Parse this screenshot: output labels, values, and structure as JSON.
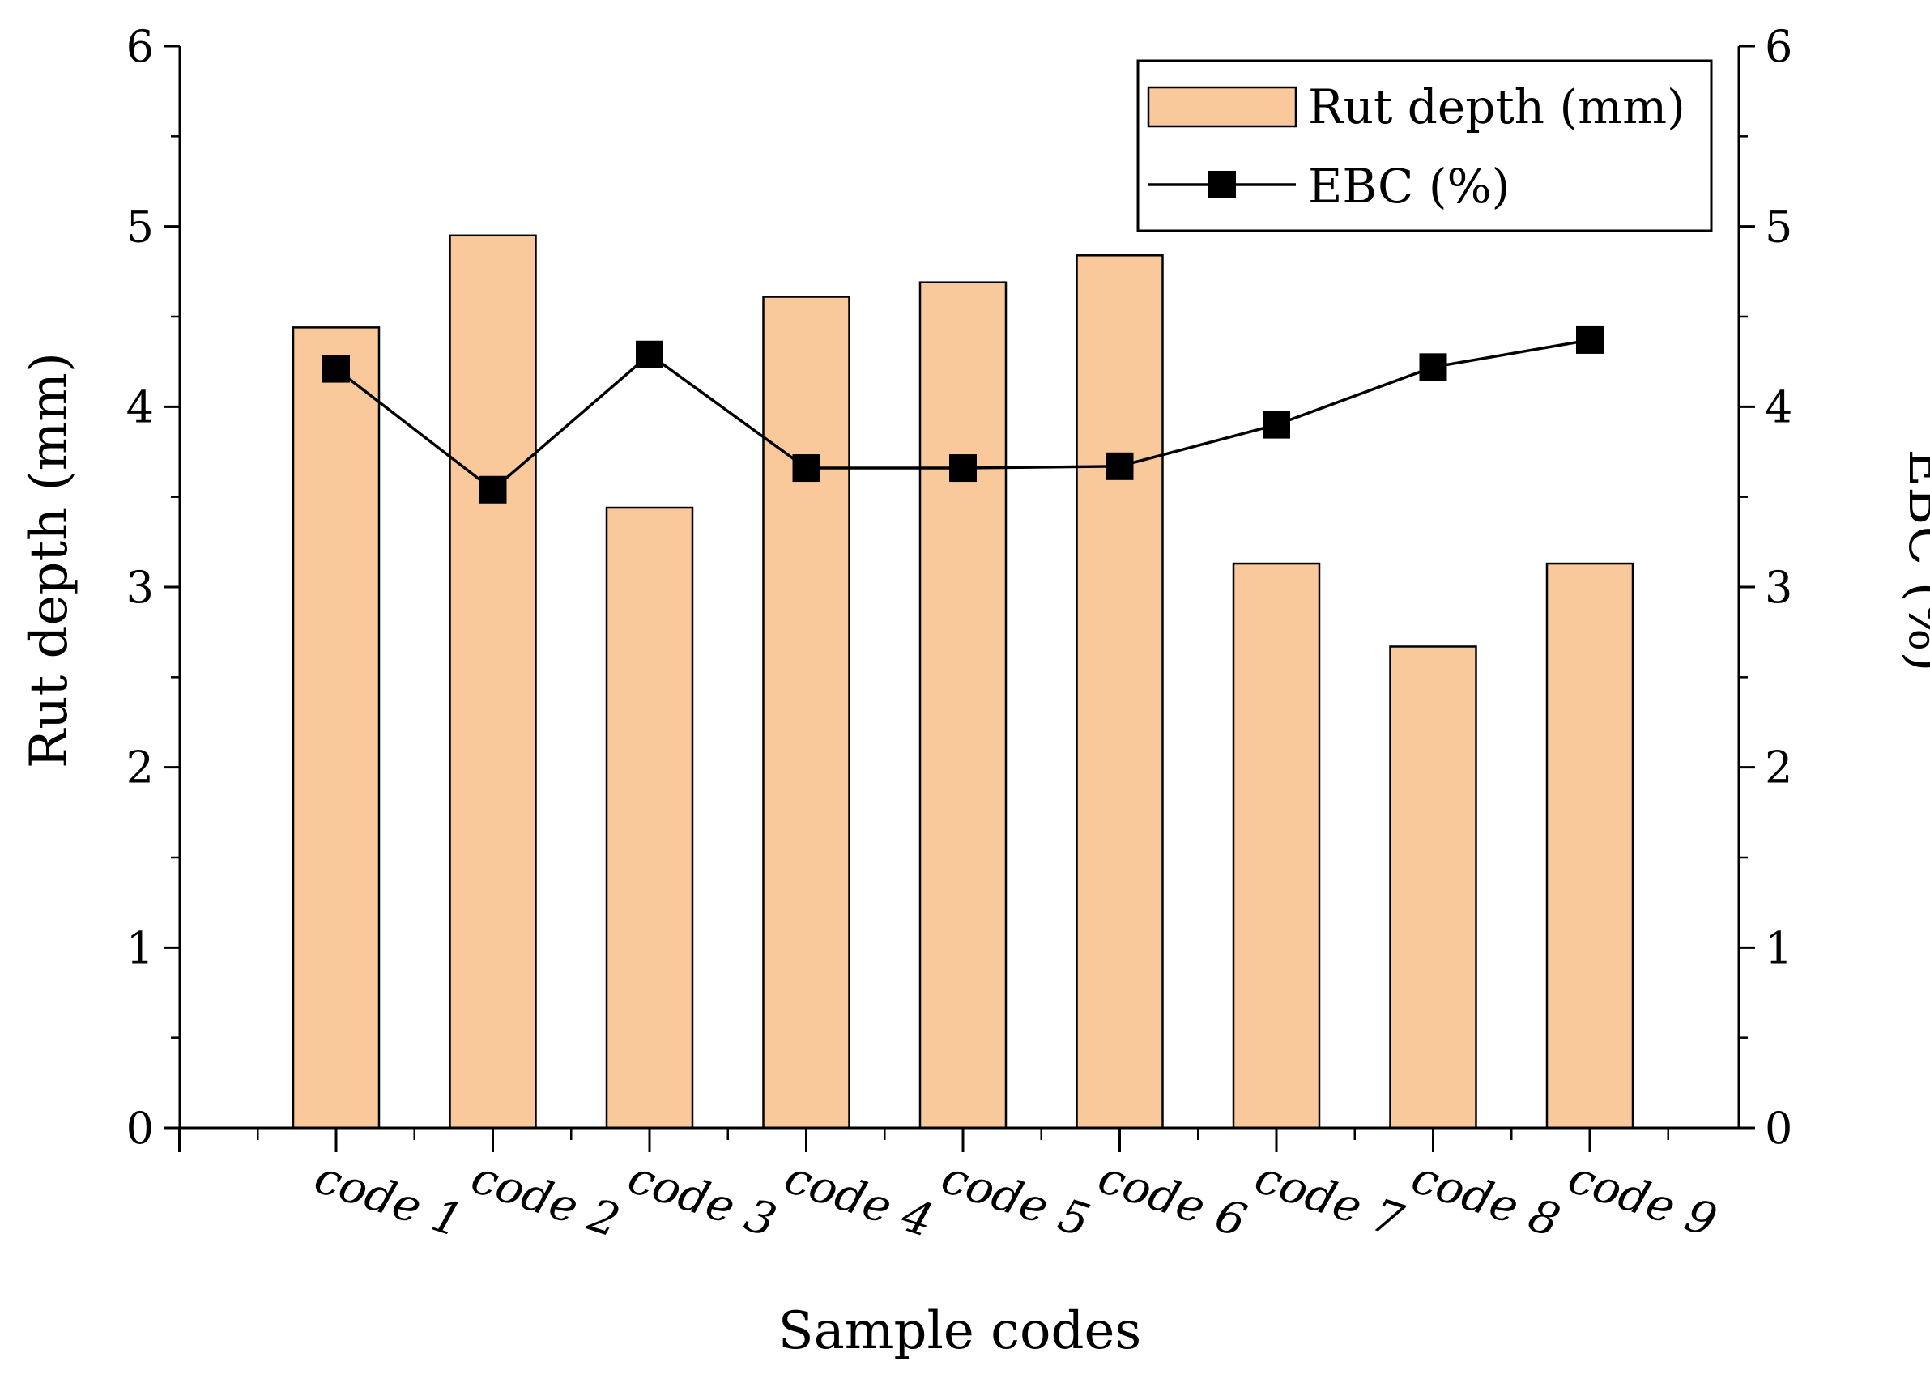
{
  "chart_data": {
    "type": "bar",
    "categories": [
      "code 1",
      "code 2",
      "code 3",
      "code 4",
      "code 5",
      "code 6",
      "code 7",
      "code 8",
      "code 9"
    ],
    "series": [
      {
        "name": "Rut depth (mm)",
        "type": "bar",
        "axis": "left",
        "color": "#f9c89b",
        "values": [
          4.44,
          4.95,
          3.44,
          4.61,
          4.69,
          4.84,
          3.13,
          2.67,
          3.13
        ]
      },
      {
        "name": "EBC (%)",
        "type": "line",
        "marker": "square",
        "axis": "right",
        "color": "#000000",
        "values": [
          4.21,
          3.54,
          4.29,
          3.66,
          3.66,
          3.67,
          3.9,
          4.22,
          4.37
        ]
      }
    ],
    "xlabel": "Sample codes",
    "ylabel": "Rut depth (mm)",
    "y2label": "EBC (%)",
    "ylim": [
      0,
      6
    ],
    "y2lim": [
      0,
      6
    ],
    "yticks": [
      "0",
      "1",
      "2",
      "3",
      "4",
      "5",
      "6"
    ],
    "y2ticks": [
      "0",
      "1",
      "2",
      "3",
      "4",
      "5",
      "6"
    ],
    "grid": false,
    "legend": "top-right",
    "legend_entries": [
      "Rut depth (mm)",
      "EBC (%)"
    ]
  }
}
